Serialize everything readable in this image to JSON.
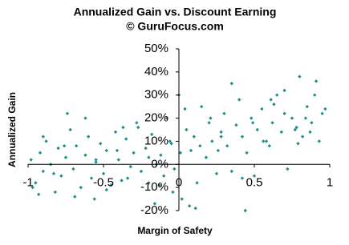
{
  "chart_data": {
    "type": "scatter",
    "title": "Annualized Gain vs. Discount Earning",
    "subtitle": "© GuruFocus.com",
    "x_label": "Margin of Safety",
    "y_label": "Annualized Gain",
    "color": "#1f8f8a",
    "xlim": [
      -1,
      1
    ],
    "xticks": [
      -1,
      -0.5,
      0,
      0.5,
      1
    ],
    "ylim": [
      -20,
      50
    ],
    "yticks": [
      {
        "value": -20,
        "label": "-20%"
      },
      {
        "value": -10,
        "label": "-10%"
      },
      {
        "value": 0,
        "label": "0%"
      },
      {
        "value": 10,
        "label": "10%"
      },
      {
        "value": 20,
        "label": "20%"
      },
      {
        "value": 30,
        "label": "30%"
      },
      {
        "value": 40,
        "label": "40%"
      },
      {
        "value": 50,
        "label": "50%"
      }
    ],
    "grid": false,
    "x": [
      -0.98,
      -0.95,
      -0.92,
      -0.9,
      -0.88,
      -0.85,
      -0.82,
      -0.8,
      -0.78,
      -0.75,
      -0.72,
      -0.7,
      -0.68,
      -0.65,
      -0.62,
      -0.6,
      -0.58,
      -0.55,
      -0.52,
      -0.5,
      -0.48,
      -0.45,
      -0.42,
      -0.4,
      -0.38,
      -0.35,
      -0.32,
      -0.3,
      -0.28,
      -0.25,
      -0.22,
      -0.2,
      -0.18,
      -0.15,
      -0.12,
      -0.1,
      -0.08,
      -0.05,
      -0.03,
      0,
      0.02,
      0.05,
      0.08,
      0.1,
      0.12,
      0.15,
      0.18,
      0.2,
      0.22,
      0.25,
      0.28,
      0.3,
      0.32,
      0.35,
      0.38,
      0.4,
      0.42,
      0.45,
      0.48,
      0.5,
      0.52,
      0.55,
      0.58,
      0.6,
      0.62,
      0.65,
      0.68,
      0.7,
      0.72,
      0.75,
      0.78,
      0.8,
      0.82,
      0.85,
      0.88,
      0.9,
      0.93,
      0.95,
      -0.97,
      -0.9,
      -0.83,
      -0.76,
      -0.69,
      -0.62,
      -0.55,
      -0.48,
      -0.41,
      -0.34,
      -0.27,
      -0.2,
      -0.13,
      -0.06,
      0.01,
      0.07,
      0.14,
      0.21,
      0.28,
      0.35,
      0.42,
      0.49,
      0.56,
      0.63,
      0.7,
      0.77,
      0.84,
      0.91,
      -0.93,
      -0.74,
      -0.56,
      -0.37,
      -0.16,
      -0.04,
      0.04,
      0.11,
      0.26,
      0.44,
      0.61,
      0.79,
      0.87,
      0.97
    ],
    "values": [
      2,
      -8,
      5,
      -3,
      10,
      0,
      -12,
      7,
      -5,
      3,
      15,
      -2,
      8,
      -10,
      4,
      12,
      -6,
      1,
      9,
      -4,
      6,
      -9,
      14,
      2,
      -7,
      11,
      -1,
      5,
      18,
      -3,
      7,
      -8,
      13,
      0,
      4,
      -5,
      20,
      9,
      -2,
      30,
      -15,
      15,
      6,
      12,
      -8,
      25,
      3,
      18,
      10,
      -4,
      14,
      22,
      8,
      -3,
      17,
      28,
      12,
      5,
      20,
      -5,
      15,
      24,
      10,
      8,
      18,
      30,
      14,
      22,
      -2,
      20,
      16,
      38,
      12,
      25,
      18,
      30,
      10,
      22,
      -10,
      12,
      -4,
      8,
      -14,
      20,
      2,
      -11,
      6,
      -6,
      16,
      3,
      -9,
      10,
      5,
      -18,
      8,
      20,
      12,
      35,
      -6,
      18,
      10,
      26,
      32,
      15,
      20,
      36,
      -13,
      22,
      -15,
      16,
      -17,
      -12,
      24,
      -19,
      6,
      -20,
      28,
      9,
      14,
      24
    ]
  }
}
